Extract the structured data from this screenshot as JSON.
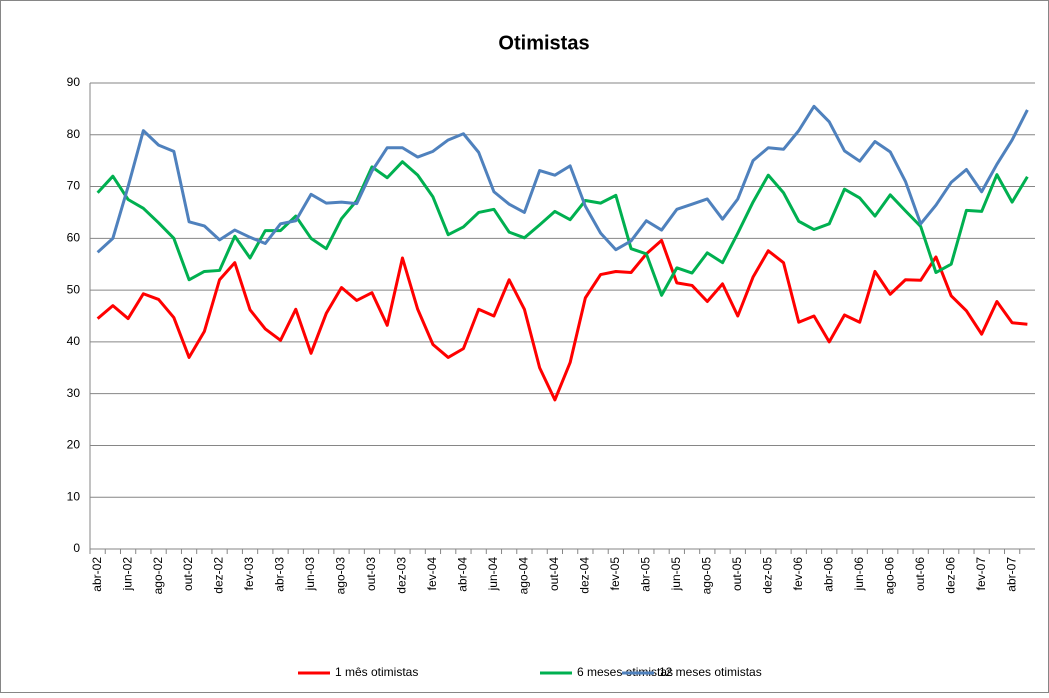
{
  "chart_data": {
    "type": "line",
    "title": "Otimistas",
    "categories": [
      "abr-02",
      null,
      "jun-02",
      null,
      "ago-02",
      null,
      "out-02",
      null,
      "dez-02",
      null,
      "fev-03",
      null,
      "abr-03",
      null,
      "jun-03",
      null,
      "ago-03",
      null,
      "out-03",
      null,
      "dez-03",
      null,
      "fev-04",
      null,
      "abr-04",
      null,
      "jun-04",
      null,
      "ago-04",
      null,
      "out-04",
      null,
      "dez-04",
      null,
      "fev-05",
      null,
      "abr-05",
      null,
      "jun-05",
      null,
      "ago-05",
      null,
      "out-05",
      null,
      "dez-05",
      null,
      "fev-06",
      null,
      "abr-06",
      null,
      "jun-06",
      null,
      "ago-06",
      null,
      "out-06",
      null,
      "dez-06",
      null,
      "fev-07",
      null,
      "abr-07",
      null
    ],
    "series": [
      {
        "name": "1 mês otimistas",
        "color": "#ff0000",
        "values": [
          44.5,
          47,
          44.5,
          49.3,
          48.2,
          44.7,
          37,
          42,
          52,
          55.3,
          46.2,
          42.5,
          40.3,
          46.3,
          37.8,
          45.5,
          50.5,
          48,
          49.5,
          43.2,
          56.2,
          46.3,
          39.5,
          37,
          38.7,
          46.3,
          45,
          52,
          46.3,
          35,
          28.8,
          36,
          48.5,
          53,
          53.6,
          53.4,
          57,
          59.6,
          51.4,
          50.9,
          47.8,
          51.2,
          45,
          52.5,
          57.6,
          55.3,
          43.8,
          45,
          40,
          45.2,
          43.8,
          53.6,
          49.2,
          52,
          51.9,
          56.4,
          48.9,
          46,
          41.5,
          47.8,
          43.7,
          43.4
        ]
      },
      {
        "name": "6 meses otimistas",
        "color": "#00b050",
        "values": [
          68.8,
          72,
          67.5,
          65.8,
          63,
          60,
          52,
          53.6,
          53.8,
          60.4,
          56.2,
          61.5,
          61.5,
          64.3,
          60,
          58,
          63.8,
          67.3,
          73.8,
          71.7,
          74.8,
          72.2,
          68,
          60.7,
          62.2,
          65,
          65.6,
          61.2,
          60.1,
          62.6,
          65.2,
          63.6,
          67.3,
          66.8,
          68.3,
          58,
          57,
          49,
          54.3,
          53.3,
          57.2,
          55.3,
          61,
          67,
          72.2,
          68.8,
          63.3,
          61.7,
          62.8,
          69.5,
          67.8,
          64.3,
          68.4,
          65.3,
          62.3,
          53.4,
          55,
          65.4,
          65.2,
          72.3,
          67,
          71.9
        ]
      },
      {
        "name": "12 meses otimistas",
        "color": "#4f81bd",
        "values": [
          57.3,
          60,
          70,
          80.8,
          78,
          76.8,
          63.2,
          62.4,
          59.7,
          61.6,
          60.2,
          59,
          62.8,
          63.4,
          68.5,
          66.8,
          67,
          66.7,
          73,
          77.5,
          77.5,
          75.7,
          76.8,
          79,
          80.2,
          76.6,
          69,
          66.6,
          65,
          73.1,
          72.2,
          74,
          66.2,
          61,
          57.8,
          59.5,
          63.4,
          61.6,
          65.6,
          66.6,
          67.6,
          63.7,
          67.6,
          75,
          77.5,
          77.2,
          80.8,
          85.5,
          82.5,
          76.9,
          74.9,
          78.7,
          76.7,
          71,
          62.8,
          66.4,
          70.8,
          73.3,
          69,
          74.3,
          79,
          84.8
        ]
      }
    ],
    "ylim": [
      0,
      90
    ],
    "yticks": [
      0,
      10,
      20,
      30,
      40,
      50,
      60,
      70,
      80,
      90
    ],
    "grid": true,
    "legend": "bottom"
  }
}
